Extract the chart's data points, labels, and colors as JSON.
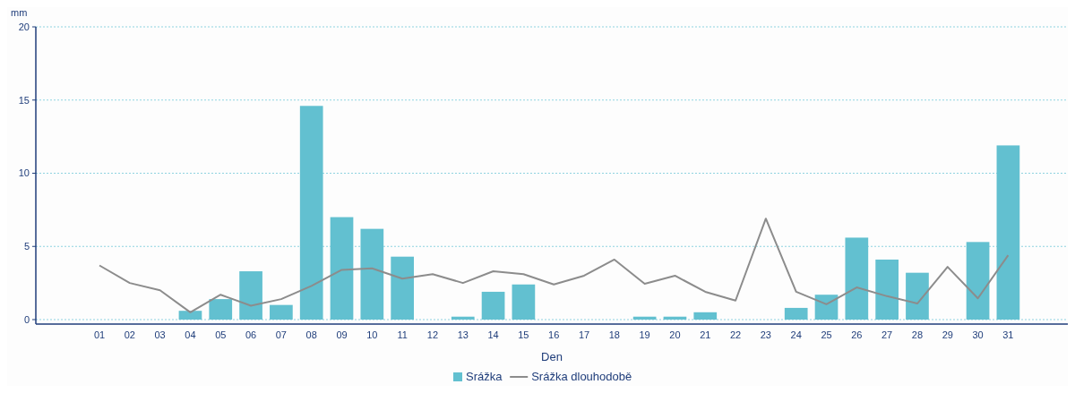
{
  "chart_data": {
    "type": "bar",
    "ylabel": "mm",
    "xlabel": "Den",
    "categories": [
      "01",
      "02",
      "03",
      "04",
      "05",
      "06",
      "07",
      "08",
      "09",
      "10",
      "11",
      "12",
      "13",
      "14",
      "15",
      "16",
      "17",
      "18",
      "19",
      "20",
      "21",
      "22",
      "23",
      "24",
      "25",
      "26",
      "27",
      "28",
      "29",
      "30",
      "31"
    ],
    "series": [
      {
        "name": "Srážka",
        "color": "#62c0d0",
        "values": [
          0,
          0,
          0,
          0.6,
          1.4,
          3.3,
          1.0,
          14.6,
          7.0,
          6.2,
          4.3,
          0,
          0.2,
          1.9,
          2.4,
          0,
          0,
          0,
          0.2,
          0.2,
          0.5,
          0,
          0,
          0.8,
          1.7,
          5.6,
          4.1,
          3.2,
          0,
          5.3,
          11.9
        ]
      },
      {
        "name": "Srážka dlouhodobě",
        "type": "line",
        "color": "#8c8c8c",
        "values": [
          3.7,
          2.5,
          2.0,
          0.5,
          1.7,
          0.95,
          1.4,
          2.3,
          3.4,
          3.5,
          2.8,
          3.1,
          2.5,
          3.3,
          3.1,
          2.4,
          3.0,
          4.1,
          2.45,
          3.0,
          1.9,
          1.3,
          6.9,
          1.9,
          1.05,
          2.2,
          1.6,
          1.1,
          3.6,
          1.45,
          4.4
        ]
      }
    ],
    "ylim": [
      0,
      20
    ],
    "yticks": [
      0,
      5,
      10,
      15,
      20
    ],
    "grid": "y",
    "legend": "bottom"
  }
}
